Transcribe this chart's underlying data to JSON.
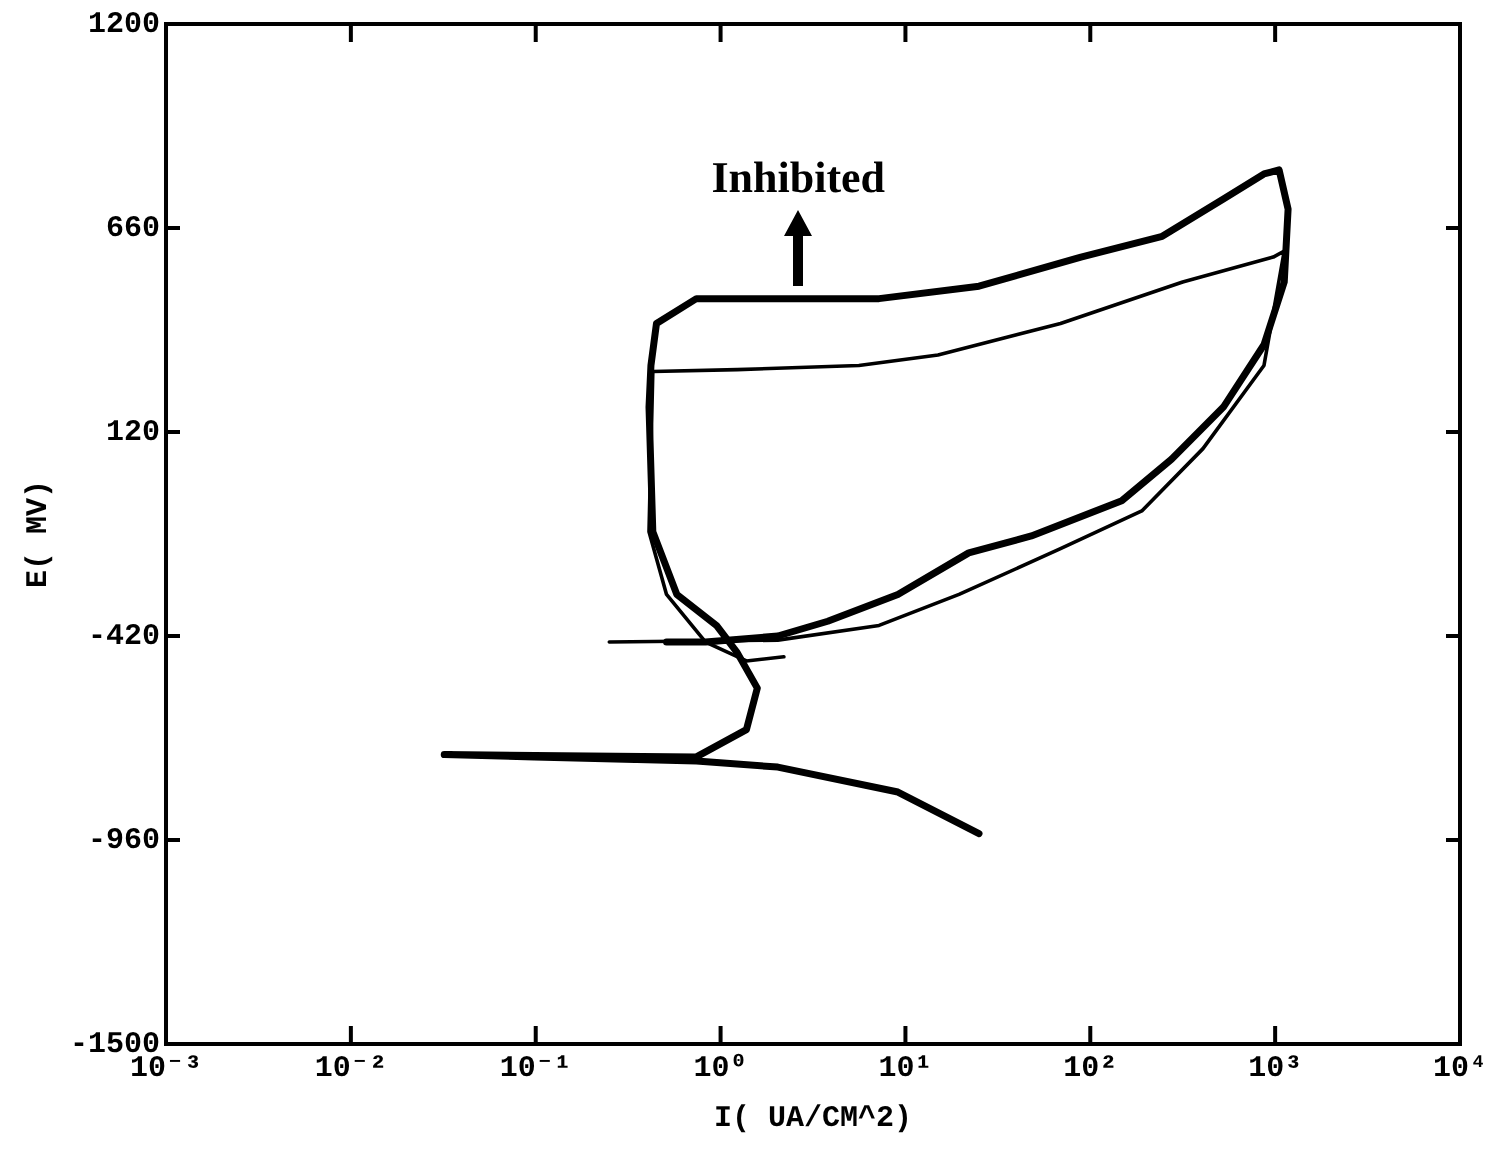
{
  "chart_data": {
    "type": "line",
    "xlabel": "I( UA/CM^2)",
    "ylabel": "E( MV)",
    "log": "x",
    "grid": false,
    "legend": false,
    "marker": "none",
    "line_style": "solid",
    "xlim": [
      0.001,
      10000
    ],
    "xticks": [
      {
        "value": 0.001,
        "label": "10⁻³"
      },
      {
        "value": 0.01,
        "label": "10⁻²"
      },
      {
        "value": 0.1,
        "label": "10⁻¹"
      },
      {
        "value": 1,
        "label": "10⁰"
      },
      {
        "value": 10,
        "label": "10¹"
      },
      {
        "value": 100,
        "label": "10²"
      },
      {
        "value": 1000,
        "label": "10³"
      },
      {
        "value": 10000,
        "label": "10⁴"
      }
    ],
    "ylim": [
      -1500,
      1200
    ],
    "yticks": [
      -1500,
      -960,
      -420,
      120,
      660,
      1200
    ],
    "annotations": [
      {
        "text": "Inhibited",
        "x": 2.63,
        "y": 473
      }
    ],
    "series": [
      {
        "color": "#000000",
        "x": [
          25,
          9.1,
          2.04,
          0.74,
          0.098,
          0.032,
          0.74,
          1.38,
          1.58,
          1.23,
          0.95,
          0.58,
          0.43,
          0.41,
          0.42,
          0.45,
          0.74,
          2.63,
          7.2,
          25,
          89,
          245,
          525,
          870,
          1050,
          1175,
          1120,
          870,
          525,
          275,
          148,
          48,
          22,
          9.1,
          3.8,
          2.04,
          0.83,
          0.51
        ],
        "values": [
          -943,
          -833,
          -767,
          -751,
          -740,
          -734,
          -740,
          -668,
          -558,
          -464,
          -392,
          -310,
          -144,
          186,
          296,
          407,
          473,
          473,
          473,
          506,
          583,
          638,
          737,
          803,
          814,
          710,
          517,
          351,
          186,
          48,
          -62,
          -155,
          -200,
          -310,
          -381,
          -420,
          -436,
          -436
        ]
      },
      {
        "color": "#000000",
        "x": [
          0.25,
          2.04,
          7.2,
          19.5,
          69,
          190,
          407,
          870,
          1120,
          977,
          316,
          69,
          15,
          5.6,
          1.23,
          0.43,
          0.41,
          0.51,
          0.83,
          1.38,
          2.2
        ],
        "values": [
          -436,
          -431,
          -392,
          -310,
          -189,
          -89,
          76,
          296,
          599,
          583,
          517,
          407,
          324,
          296,
          285,
          280,
          -144,
          -310,
          -436,
          -486,
          -475
        ]
      }
    ]
  }
}
